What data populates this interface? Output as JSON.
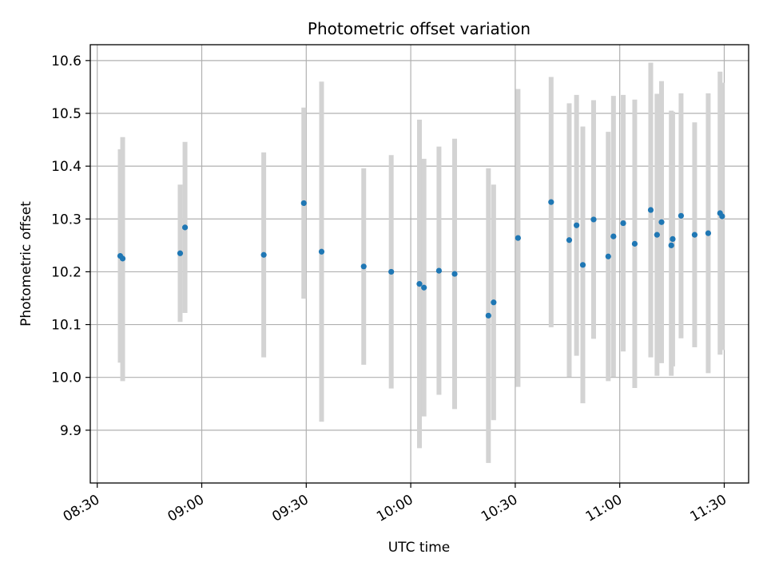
{
  "chart_data": {
    "type": "scatter",
    "title": "Photometric offset variation",
    "xlabel": "UTC time",
    "ylabel": "Photometric offset",
    "grid": true,
    "colors": {
      "points": "#1f77b4",
      "errorbars": "#d3d3d3",
      "grid": "#b0b0b0"
    },
    "x_tick_labels": [
      "08:30",
      "09:00",
      "09:30",
      "10:00",
      "10:30",
      "11:00",
      "11:30"
    ],
    "x_ticks": [
      "08:30",
      "09:00",
      "09:30",
      "10:00",
      "10:30",
      "11:00",
      "11:30"
    ],
    "y_ticks": [
      9.9,
      10.0,
      10.1,
      10.2,
      10.3,
      10.4,
      10.5,
      10.6
    ],
    "y_tick_labels": [
      "9.9",
      "10.0",
      "10.1",
      "10.2",
      "10.3",
      "10.4",
      "10.5",
      "10.6"
    ],
    "xlim": [
      "08:28",
      "11:37"
    ],
    "ylim": [
      9.8,
      10.63
    ],
    "points": [
      {
        "t": "08:36.6",
        "y": 10.23,
        "lo": 10.028,
        "hi": 10.432
      },
      {
        "t": "08:37.3",
        "y": 10.225,
        "lo": 9.993,
        "hi": 10.455
      },
      {
        "t": "08:53.8",
        "y": 10.235,
        "lo": 10.105,
        "hi": 10.365
      },
      {
        "t": "08:55.2",
        "y": 10.284,
        "lo": 10.122,
        "hi": 10.446
      },
      {
        "t": "09:17.8",
        "y": 10.232,
        "lo": 10.038,
        "hi": 10.426
      },
      {
        "t": "09:29.3",
        "y": 10.33,
        "lo": 10.149,
        "hi": 10.511
      },
      {
        "t": "09:34.4",
        "y": 10.238,
        "lo": 9.916,
        "hi": 10.56
      },
      {
        "t": "09:46.5",
        "y": 10.21,
        "lo": 10.024,
        "hi": 10.396
      },
      {
        "t": "09:54.4",
        "y": 10.2,
        "lo": 9.979,
        "hi": 10.421
      },
      {
        "t": "10:02.5",
        "y": 10.177,
        "lo": 9.866,
        "hi": 10.488
      },
      {
        "t": "10:03.8",
        "y": 10.17,
        "lo": 9.926,
        "hi": 10.414
      },
      {
        "t": "10:08.1",
        "y": 10.202,
        "lo": 9.967,
        "hi": 10.437
      },
      {
        "t": "10:12.6",
        "y": 10.196,
        "lo": 9.94,
        "hi": 10.452
      },
      {
        "t": "10:22.3",
        "y": 10.117,
        "lo": 9.838,
        "hi": 10.396
      },
      {
        "t": "10:23.8",
        "y": 10.142,
        "lo": 9.919,
        "hi": 10.365
      },
      {
        "t": "10:30.8",
        "y": 10.264,
        "lo": 9.982,
        "hi": 10.546
      },
      {
        "t": "10:40.3",
        "y": 10.332,
        "lo": 10.095,
        "hi": 10.569
      },
      {
        "t": "10:45.5",
        "y": 10.26,
        "lo": 10.001,
        "hi": 10.519
      },
      {
        "t": "10:47.6",
        "y": 10.288,
        "lo": 10.041,
        "hi": 10.535
      },
      {
        "t": "10:49.4",
        "y": 10.213,
        "lo": 9.951,
        "hi": 10.475
      },
      {
        "t": "10:52.5",
        "y": 10.299,
        "lo": 10.073,
        "hi": 10.525
      },
      {
        "t": "10:56.7",
        "y": 10.229,
        "lo": 9.993,
        "hi": 10.465
      },
      {
        "t": "10:58.2",
        "y": 10.267,
        "lo": 10.001,
        "hi": 10.533
      },
      {
        "t": "11:01.0",
        "y": 10.292,
        "lo": 10.049,
        "hi": 10.535
      },
      {
        "t": "11:04.3",
        "y": 10.253,
        "lo": 9.98,
        "hi": 10.526
      },
      {
        "t": "11:08.9",
        "y": 10.317,
        "lo": 10.038,
        "hi": 10.596
      },
      {
        "t": "11:10.7",
        "y": 10.27,
        "lo": 10.003,
        "hi": 10.537
      },
      {
        "t": "11:12.0",
        "y": 10.294,
        "lo": 10.027,
        "hi": 10.561
      },
      {
        "t": "11:14.8",
        "y": 10.25,
        "lo": 10.003,
        "hi": 10.505
      },
      {
        "t": "11:15.2",
        "y": 10.262,
        "lo": 10.021,
        "hi": 10.503
      },
      {
        "t": "11:17.6",
        "y": 10.306,
        "lo": 10.074,
        "hi": 10.538
      },
      {
        "t": "11:21.5",
        "y": 10.27,
        "lo": 10.057,
        "hi": 10.483
      },
      {
        "t": "11:25.4",
        "y": 10.273,
        "lo": 10.008,
        "hi": 10.538
      },
      {
        "t": "11:28.8",
        "y": 10.311,
        "lo": 10.043,
        "hi": 10.579
      },
      {
        "t": "11:29.4",
        "y": 10.305,
        "lo": 10.052,
        "hi": 10.558
      }
    ]
  }
}
